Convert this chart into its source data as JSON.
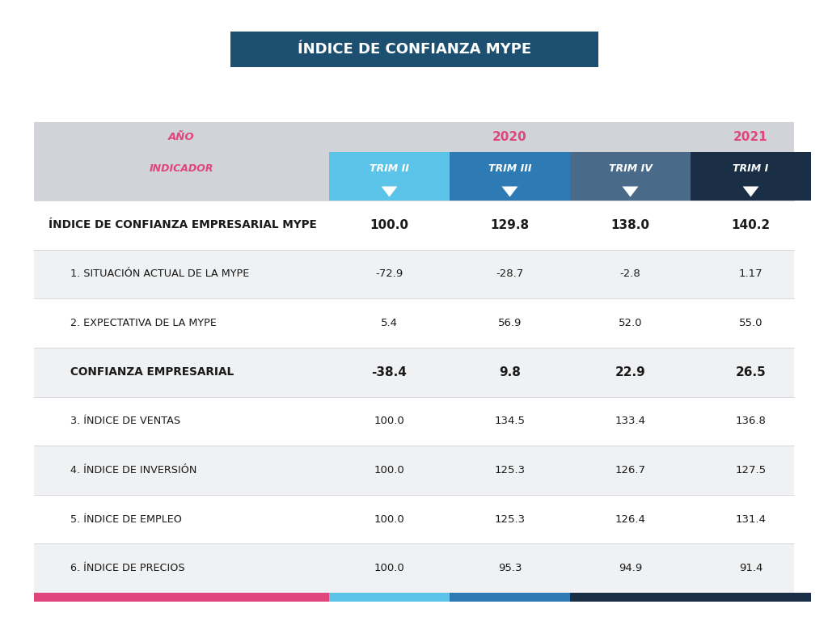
{
  "title": "ÍNDICE DE CONFIANZA MYPE",
  "title_bg_color": "#1d5070",
  "title_text_color": "#ffffff",
  "header_row1_label": "AÑO",
  "header_row1_2020": "2020",
  "header_row1_2021": "2021",
  "header_row2": [
    "INDICADOR",
    "TRIM II",
    "TRIM III",
    "TRIM IV",
    "TRIM I"
  ],
  "year_color": "#e0457b",
  "rows": [
    {
      "label": "ÍNDICE DE CONFIANZA EMPRESARIAL MYPE",
      "bold": true,
      "indent": false,
      "values": [
        "100.0",
        "129.8",
        "138.0",
        "140.2"
      ],
      "bg": "#ffffff"
    },
    {
      "label": "1. SITUACIÓN ACTUAL DE LA MYPE",
      "bold": false,
      "indent": true,
      "values": [
        "-72.9",
        "-28.7",
        "-2.8",
        "1.17"
      ],
      "bg": "#f0f1f3"
    },
    {
      "label": "2. EXPECTATIVA DE LA MYPE",
      "bold": false,
      "indent": true,
      "values": [
        "5.4",
        "56.9",
        "52.0",
        "55.0"
      ],
      "bg": "#ffffff"
    },
    {
      "label": "CONFIANZA EMPRESARIAL",
      "bold": true,
      "indent": true,
      "values": [
        "-38.4",
        "9.8",
        "22.9",
        "26.5"
      ],
      "bg": "#f0f1f3"
    },
    {
      "label": "3. ÍNDICE DE VENTAS",
      "bold": false,
      "indent": true,
      "values": [
        "100.0",
        "134.5",
        "133.4",
        "136.8"
      ],
      "bg": "#ffffff"
    },
    {
      "label": "4. ÍNDICE DE INVERSIÓN",
      "bold": false,
      "indent": true,
      "values": [
        "100.0",
        "125.3",
        "126.7",
        "127.5"
      ],
      "bg": "#f0f1f3"
    },
    {
      "label": "5. ÍNDICE DE EMPLEO",
      "bold": false,
      "indent": true,
      "values": [
        "100.0",
        "125.3",
        "126.4",
        "131.4"
      ],
      "bg": "#ffffff"
    },
    {
      "label": "6. ÍNDICE DE PRECIOS",
      "bold": false,
      "indent": true,
      "values": [
        "100.0",
        "95.3",
        "94.9",
        "91.4"
      ],
      "bg": "#f0f1f3"
    }
  ],
  "col_bg_row2": [
    "#d0d3d8",
    "#5bc4e8",
    "#2d7ab5",
    "#4a6a8a",
    "#1a2e45"
  ],
  "col_text_row2": [
    "#e0457b",
    "#ffffff",
    "#ffffff",
    "#ffffff",
    "#ffffff"
  ],
  "footer_colors": [
    "#e0457b",
    "#5bc4e8",
    "#2d7ab5",
    "#1a2e45"
  ],
  "table_header_bg": "#d0d3d8",
  "bg_color": "#ffffff",
  "separator_color": "#c8cdd6"
}
